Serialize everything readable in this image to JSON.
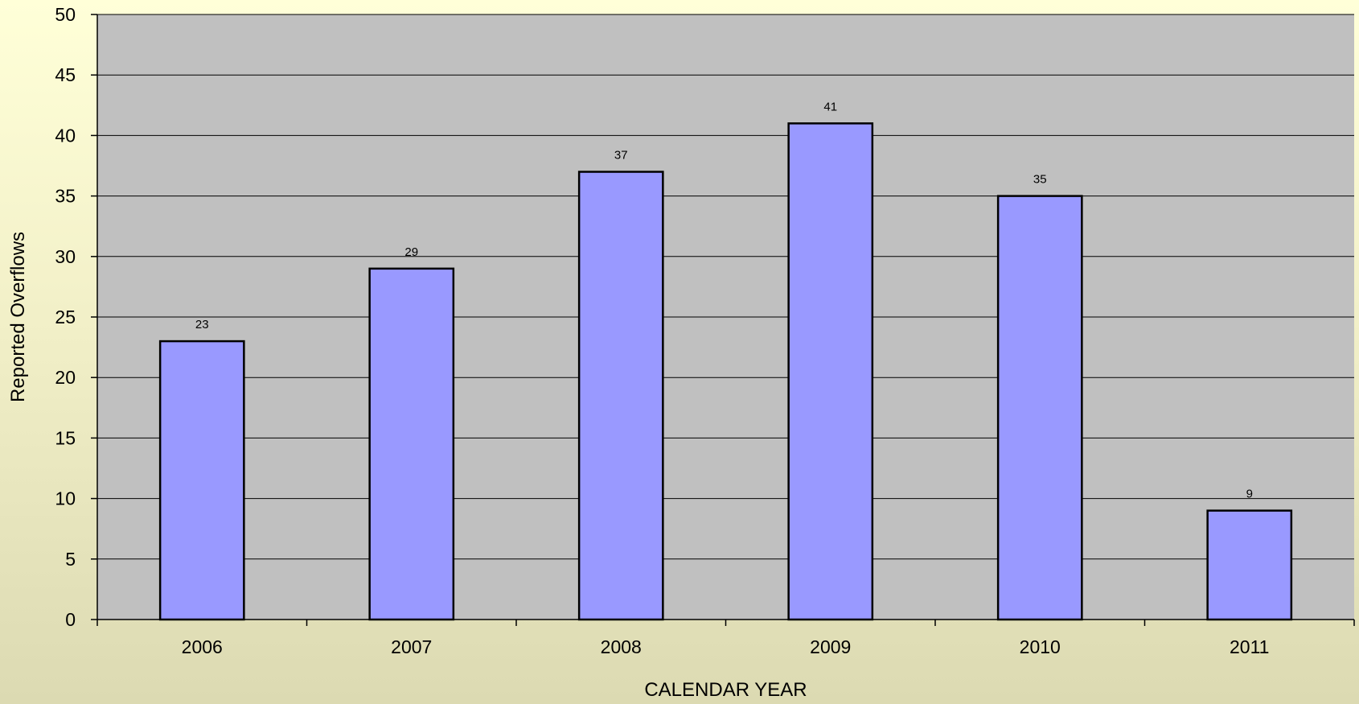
{
  "chart_data": {
    "type": "bar",
    "title": "",
    "xlabel": "CALENDAR YEAR",
    "ylabel": "Reported Overflows",
    "categories": [
      "2006",
      "2007",
      "2008",
      "2009",
      "2010",
      "2011"
    ],
    "values": [
      23,
      29,
      37,
      41,
      35,
      9
    ],
    "ylim": [
      0,
      50
    ],
    "yticks": [
      0,
      5,
      10,
      15,
      20,
      25,
      30,
      35,
      40,
      45,
      50
    ],
    "grid": true,
    "legend": "none",
    "data_labels": true,
    "colors": {
      "bar_fill": "#9999ff",
      "bar_stroke": "#000000",
      "plot_background": "#c0c0c0",
      "gridline": "#000000"
    }
  }
}
